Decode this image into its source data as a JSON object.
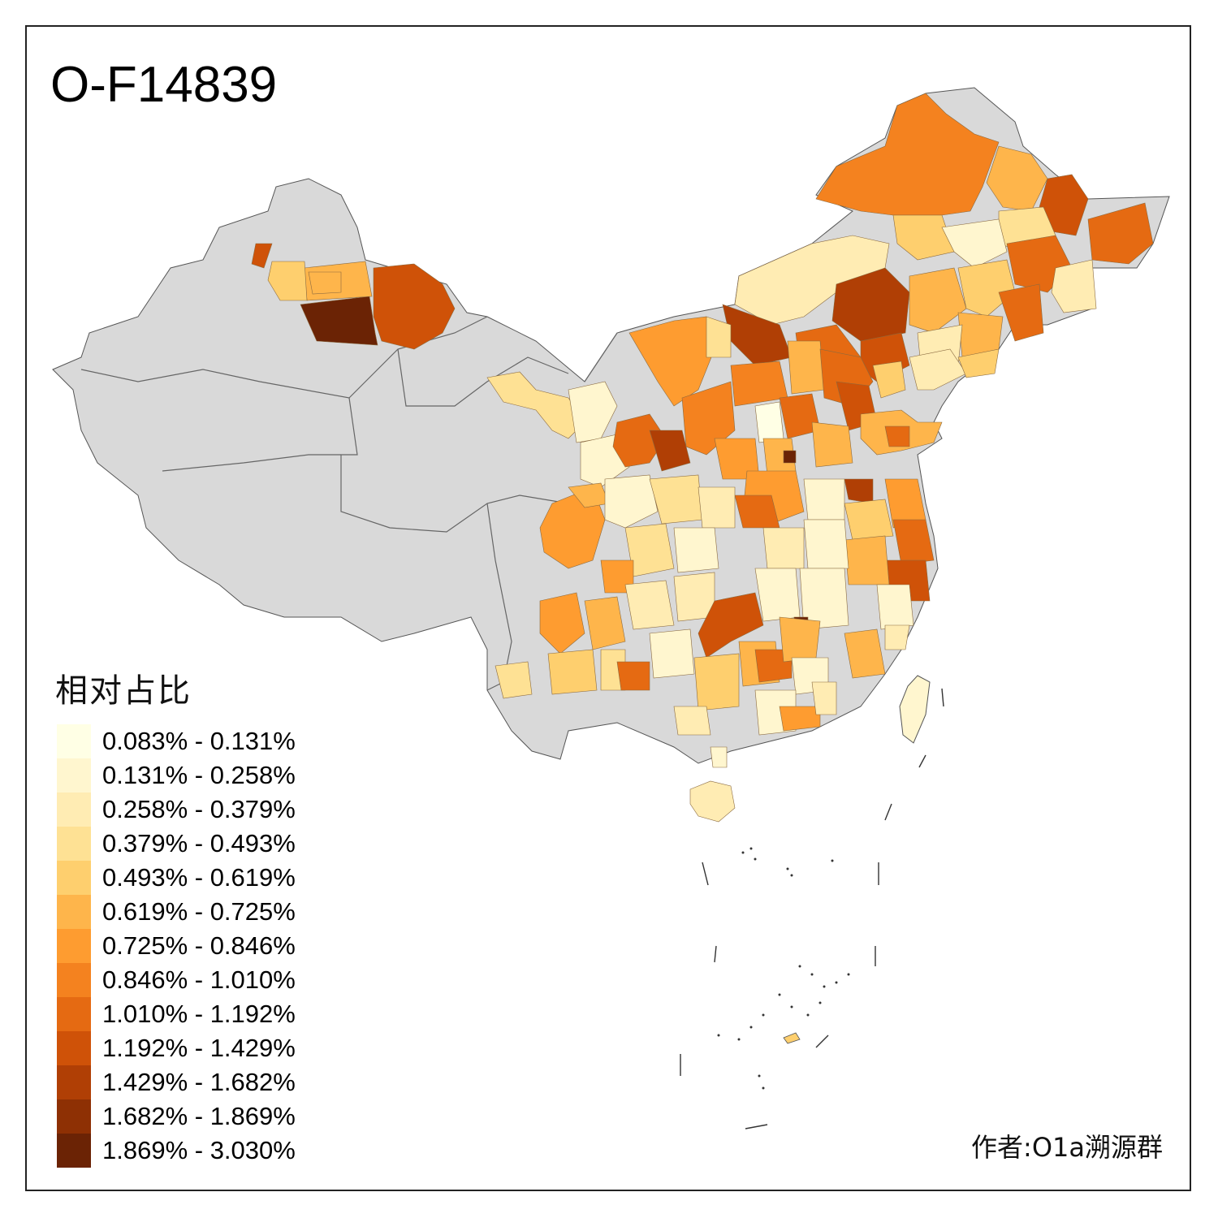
{
  "title": "O-F14839",
  "legend": {
    "title": "相对占比",
    "classes": [
      {
        "label": "0.083% - 0.131%",
        "color": "#FFFFE5"
      },
      {
        "label": "0.131% - 0.258%",
        "color": "#FFF6CF"
      },
      {
        "label": "0.258% - 0.379%",
        "color": "#FFECB3"
      },
      {
        "label": "0.379% - 0.493%",
        "color": "#FEE194"
      },
      {
        "label": "0.493% - 0.619%",
        "color": "#FECF6E"
      },
      {
        "label": "0.619% - 0.725%",
        "color": "#FEB54B"
      },
      {
        "label": "0.725% - 0.846%",
        "color": "#FE9C30"
      },
      {
        "label": "0.846% - 1.010%",
        "color": "#F4821F"
      },
      {
        "label": "1.010% - 1.192%",
        "color": "#E56A12"
      },
      {
        "label": "1.192% - 1.429%",
        "color": "#CF5208"
      },
      {
        "label": "1.429% - 1.682%",
        "color": "#B03F05"
      },
      {
        "label": "1.682% - 1.869%",
        "color": "#8E3004"
      },
      {
        "label": "1.869% - 3.030%",
        "color": "#6B2305"
      }
    ],
    "no_data_color": "#D9D9D9"
  },
  "author": "作者:O1a溯源群"
}
